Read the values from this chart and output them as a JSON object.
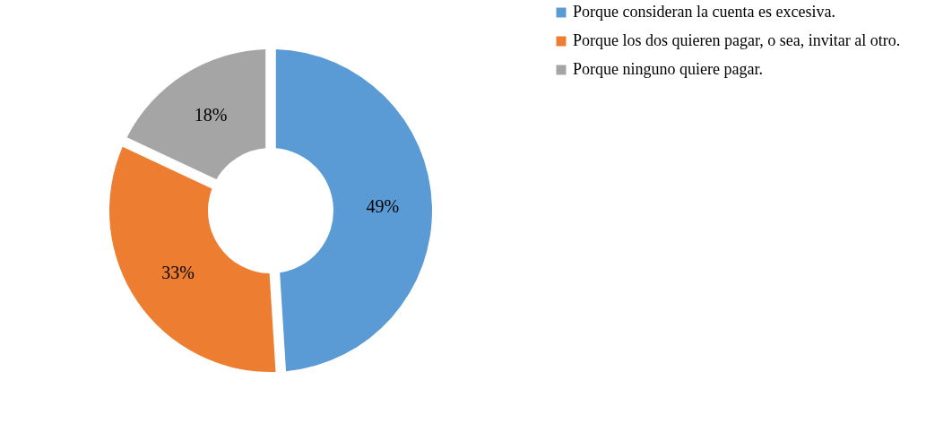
{
  "chart_data": {
    "type": "donut",
    "categories": [
      "Porque consideran la cuenta es excesiva.",
      "Porque los dos quieren pagar, o sea, invitar al otro.",
      "Porque ninguno quiere pagar."
    ],
    "values": [
      49,
      33,
      18
    ],
    "colors": [
      "#5b9bd5",
      "#ed7d31",
      "#a5a5a5"
    ],
    "value_labels": [
      "49%",
      "33%",
      "18%"
    ],
    "legend": "right"
  }
}
